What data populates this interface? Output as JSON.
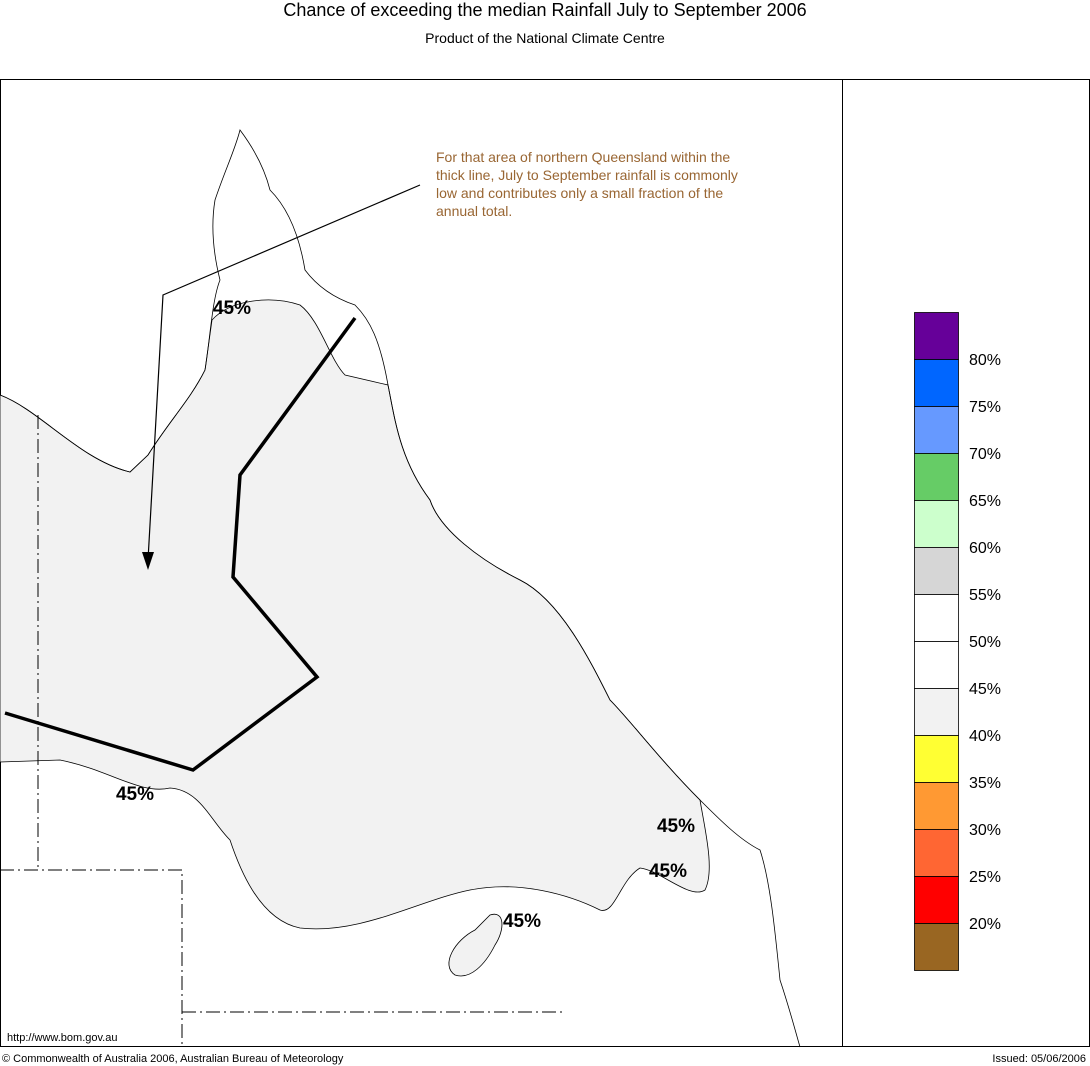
{
  "header": {
    "title": "Chance of exceeding the median Rainfall July to September 2006",
    "subtitle": "Product of the National Climate Centre"
  },
  "annotation": {
    "lines": [
      "For that area of northern Queensland within the",
      "thick line, July to September rainfall is commonly",
      "low and contributes only a small fraction of the",
      "annual total."
    ]
  },
  "contour_labels": [
    "45%",
    "45%",
    "45%",
    "45%",
    "45%"
  ],
  "legend": {
    "swatches": [
      "#660099",
      "#0066ff",
      "#6699ff",
      "#66cc66",
      "#ccffcc",
      "#d6d6d6",
      "#ffffff",
      "#ffffff",
      "#f2f2f2",
      "#ffff33",
      "#ff9933",
      "#ff6633",
      "#ff0000",
      "#996622"
    ],
    "labels": [
      "80%",
      "75%",
      "70%",
      "65%",
      "60%",
      "55%",
      "50%",
      "45%",
      "40%",
      "35%",
      "30%",
      "25%",
      "20%"
    ]
  },
  "footer": {
    "url": "http://www.bom.gov.au",
    "copyright": "© Commonwealth of Australia 2006, Australian Bureau of Meteorology",
    "issued": "Issued: 05/06/2006"
  }
}
